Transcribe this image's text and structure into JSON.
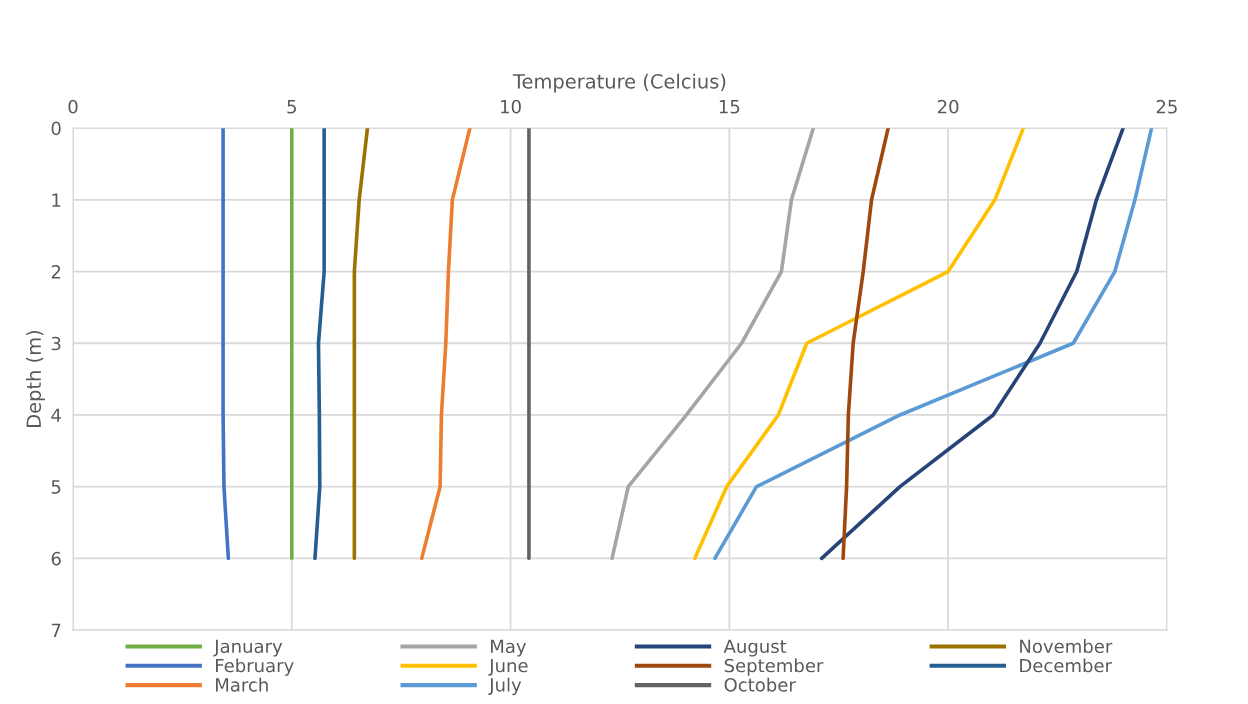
{
  "chart_data": {
    "type": "line",
    "xlabel": "Temperature (Celcius)",
    "ylabel": "Depth (m)",
    "xlim": [
      0,
      25
    ],
    "xticks": [
      0,
      5,
      10,
      15,
      20,
      25
    ],
    "ylim": [
      7,
      0
    ],
    "yticks": [
      0,
      1,
      2,
      3,
      4,
      5,
      6,
      7
    ],
    "grid": true,
    "legend": "bottom",
    "marker": "none",
    "line_style": "solid",
    "series": [
      {
        "name": "January",
        "color": "#70ad47",
        "x": [
          5,
          5,
          5,
          5,
          5,
          5,
          5
        ],
        "values": [
          0,
          1,
          2,
          3,
          4,
          5,
          6
        ]
      },
      {
        "name": "February",
        "color": "#4472c4",
        "x": [
          3.43,
          3.43,
          3.43,
          3.43,
          3.43,
          3.45,
          3.55
        ],
        "values": [
          0,
          1,
          2,
          3,
          4,
          5,
          6
        ]
      },
      {
        "name": "March",
        "color": "#ed7d31",
        "x": [
          9.07,
          8.67,
          8.58,
          8.52,
          8.42,
          8.39,
          7.97
        ],
        "values": [
          0,
          1,
          2,
          3,
          4,
          5,
          6
        ]
      },
      {
        "name": "May",
        "color": "#a5a5a5",
        "x": [
          16.92,
          16.42,
          16.19,
          15.28,
          14.02,
          12.69,
          12.32
        ],
        "values": [
          0,
          1,
          2,
          3,
          4,
          5,
          6
        ]
      },
      {
        "name": "June",
        "color": "#ffc000",
        "x": [
          21.72,
          21.07,
          20.0,
          16.77,
          16.12,
          14.94,
          14.21
        ],
        "values": [
          0,
          1,
          2,
          3,
          4,
          5,
          6
        ]
      },
      {
        "name": "July",
        "color": "#5b9bd5",
        "x": [
          24.65,
          24.27,
          23.81,
          22.86,
          18.9,
          15.62,
          14.67
        ],
        "values": [
          0,
          1,
          2,
          3,
          4,
          5,
          6
        ]
      },
      {
        "name": "August",
        "color": "#264478",
        "x": [
          24.0,
          23.39,
          22.94,
          22.1,
          21.03,
          18.9,
          17.11
        ],
        "values": [
          0,
          1,
          2,
          3,
          4,
          5,
          6
        ]
      },
      {
        "name": "September",
        "color": "#9e480e",
        "x": [
          18.63,
          18.25,
          18.06,
          17.83,
          17.72,
          17.68,
          17.6
        ],
        "values": [
          0,
          1,
          2,
          3,
          4,
          5,
          6
        ]
      },
      {
        "name": "October",
        "color": "#636363",
        "x": [
          10.42,
          10.42,
          10.42,
          10.42,
          10.42,
          10.42,
          10.42
        ],
        "values": [
          0,
          1,
          2,
          3,
          4,
          5,
          6
        ]
      },
      {
        "name": "November",
        "color": "#997300",
        "x": [
          6.73,
          6.54,
          6.43,
          6.43,
          6.43,
          6.43,
          6.43
        ],
        "values": [
          0,
          1,
          2,
          3,
          4,
          5,
          6
        ]
      },
      {
        "name": "December",
        "color": "#255e91",
        "x": [
          5.74,
          5.74,
          5.74,
          5.61,
          5.63,
          5.64,
          5.53
        ],
        "values": [
          0,
          1,
          2,
          3,
          4,
          5,
          6
        ]
      }
    ]
  }
}
